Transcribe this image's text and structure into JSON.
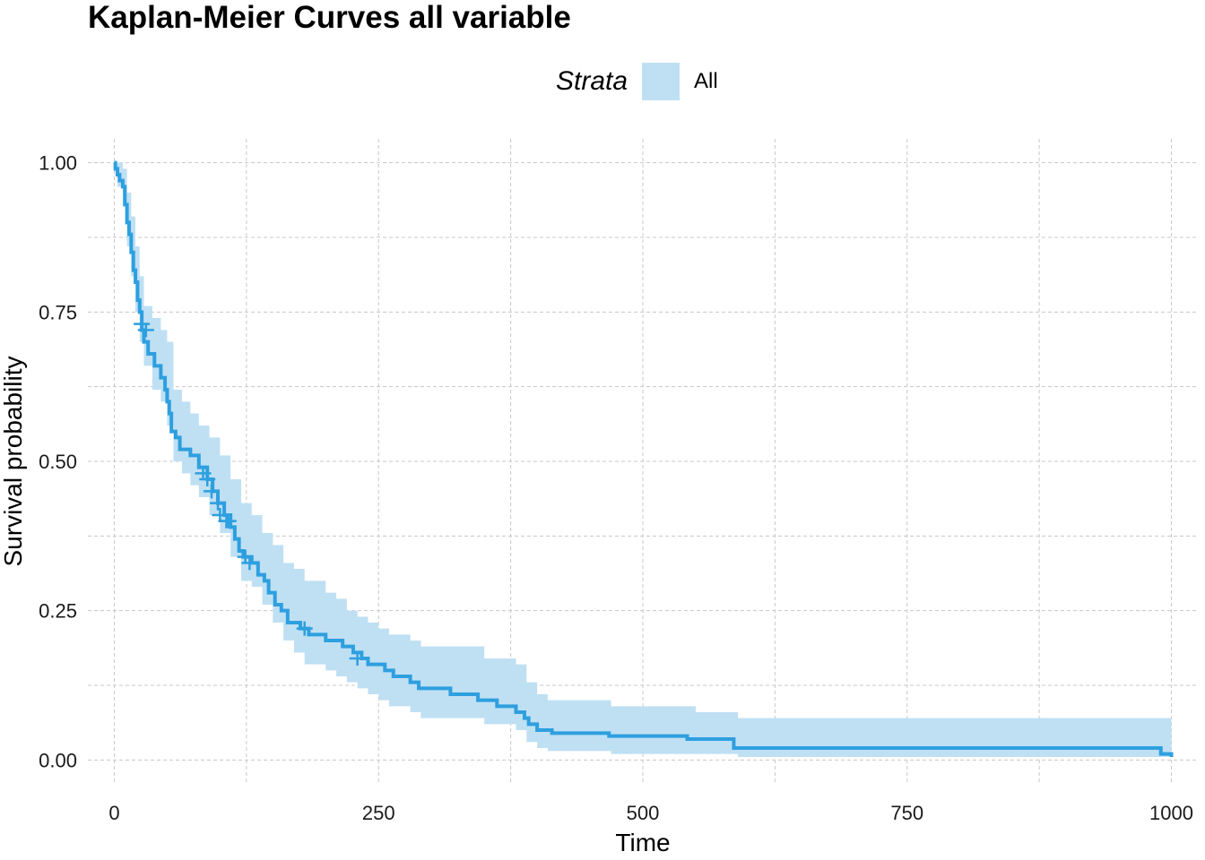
{
  "chart_data": {
    "type": "line",
    "subtype": "kaplan-meier survival curve with confidence band",
    "title": "Kaplan-Meier Curves all variable",
    "xlabel": "Time",
    "ylabel": "Survival probability",
    "xlim": [
      -25,
      1025
    ],
    "ylim": [
      -0.04,
      1.04
    ],
    "x_ticks": [
      0,
      250,
      500,
      750,
      1000
    ],
    "x_tick_labels": [
      "0",
      "250",
      "500",
      "750",
      "1000"
    ],
    "y_ticks": [
      0,
      0.25,
      0.5,
      0.75,
      1.0
    ],
    "y_tick_labels": [
      "0.00",
      "0.25",
      "0.50",
      "0.75",
      "1.00"
    ],
    "grid": true,
    "legend": {
      "title": "Strata",
      "placement": "top",
      "entries": [
        "All"
      ]
    },
    "colors": {
      "line": "#2E9FDF",
      "band": "#BFE0F3",
      "grid": "#C8C8C8",
      "text": "#1A1A1A"
    },
    "series": [
      {
        "name": "All",
        "steps": [
          [
            0,
            1.0
          ],
          [
            1,
            0.99
          ],
          [
            3,
            0.98
          ],
          [
            5,
            0.97
          ],
          [
            8,
            0.96
          ],
          [
            10,
            0.93
          ],
          [
            12,
            0.9
          ],
          [
            14,
            0.88
          ],
          [
            16,
            0.85
          ],
          [
            18,
            0.82
          ],
          [
            20,
            0.8
          ],
          [
            22,
            0.77
          ],
          [
            24,
            0.75
          ],
          [
            26,
            0.72
          ],
          [
            28,
            0.7
          ],
          [
            32,
            0.68
          ],
          [
            38,
            0.66
          ],
          [
            44,
            0.64
          ],
          [
            48,
            0.62
          ],
          [
            50,
            0.6
          ],
          [
            52,
            0.58
          ],
          [
            54,
            0.55
          ],
          [
            58,
            0.54
          ],
          [
            62,
            0.52
          ],
          [
            72,
            0.51
          ],
          [
            80,
            0.49
          ],
          [
            88,
            0.47
          ],
          [
            93,
            0.45
          ],
          [
            98,
            0.43
          ],
          [
            104,
            0.41
          ],
          [
            110,
            0.39
          ],
          [
            114,
            0.37
          ],
          [
            118,
            0.35
          ],
          [
            122,
            0.34
          ],
          [
            130,
            0.33
          ],
          [
            136,
            0.31
          ],
          [
            142,
            0.3
          ],
          [
            146,
            0.28
          ],
          [
            152,
            0.26
          ],
          [
            158,
            0.25
          ],
          [
            164,
            0.23
          ],
          [
            176,
            0.22
          ],
          [
            184,
            0.21
          ],
          [
            200,
            0.2
          ],
          [
            216,
            0.19
          ],
          [
            226,
            0.18
          ],
          [
            234,
            0.17
          ],
          [
            240,
            0.16
          ],
          [
            256,
            0.15
          ],
          [
            264,
            0.14
          ],
          [
            280,
            0.13
          ],
          [
            288,
            0.12
          ],
          [
            318,
            0.11
          ],
          [
            344,
            0.1
          ],
          [
            362,
            0.09
          ],
          [
            380,
            0.08
          ],
          [
            388,
            0.07
          ],
          [
            392,
            0.06
          ],
          [
            400,
            0.05
          ],
          [
            414,
            0.045
          ],
          [
            468,
            0.04
          ],
          [
            542,
            0.035
          ],
          [
            586,
            0.02
          ],
          [
            990,
            0.01
          ],
          [
            1000,
            0.005
          ]
        ],
        "ci_steps": [
          [
            0,
            0.985,
            1.0
          ],
          [
            3,
            0.96,
            1.0
          ],
          [
            8,
            0.93,
            0.99
          ],
          [
            12,
            0.86,
            0.95
          ],
          [
            16,
            0.81,
            0.91
          ],
          [
            20,
            0.75,
            0.86
          ],
          [
            24,
            0.7,
            0.81
          ],
          [
            28,
            0.66,
            0.76
          ],
          [
            36,
            0.62,
            0.74
          ],
          [
            44,
            0.6,
            0.72
          ],
          [
            50,
            0.56,
            0.7
          ],
          [
            56,
            0.5,
            0.62
          ],
          [
            64,
            0.48,
            0.6
          ],
          [
            72,
            0.46,
            0.58
          ],
          [
            80,
            0.44,
            0.56
          ],
          [
            90,
            0.41,
            0.54
          ],
          [
            100,
            0.38,
            0.51
          ],
          [
            110,
            0.34,
            0.47
          ],
          [
            120,
            0.3,
            0.43
          ],
          [
            130,
            0.29,
            0.41
          ],
          [
            140,
            0.26,
            0.38
          ],
          [
            150,
            0.23,
            0.36
          ],
          [
            160,
            0.2,
            0.33
          ],
          [
            170,
            0.18,
            0.32
          ],
          [
            180,
            0.16,
            0.3
          ],
          [
            200,
            0.15,
            0.28
          ],
          [
            210,
            0.14,
            0.27
          ],
          [
            220,
            0.13,
            0.25
          ],
          [
            230,
            0.12,
            0.24
          ],
          [
            240,
            0.11,
            0.23
          ],
          [
            250,
            0.1,
            0.22
          ],
          [
            260,
            0.09,
            0.21
          ],
          [
            280,
            0.08,
            0.2
          ],
          [
            290,
            0.07,
            0.19
          ],
          [
            350,
            0.06,
            0.17
          ],
          [
            380,
            0.05,
            0.16
          ],
          [
            390,
            0.03,
            0.13
          ],
          [
            400,
            0.02,
            0.11
          ],
          [
            410,
            0.015,
            0.1
          ],
          [
            470,
            0.01,
            0.09
          ],
          [
            550,
            0.01,
            0.08
          ],
          [
            590,
            0.005,
            0.07
          ],
          [
            1000,
            0.0,
            0.065
          ]
        ],
        "censor_marks": [
          [
            26,
            0.73
          ],
          [
            30,
            0.72
          ],
          [
            84,
            0.48
          ],
          [
            88,
            0.47
          ],
          [
            92,
            0.45
          ],
          [
            98,
            0.43
          ],
          [
            100,
            0.41
          ],
          [
            106,
            0.4
          ],
          [
            108,
            0.4
          ],
          [
            124,
            0.34
          ],
          [
            128,
            0.33
          ],
          [
            180,
            0.22
          ],
          [
            230,
            0.17
          ]
        ]
      }
    ]
  }
}
